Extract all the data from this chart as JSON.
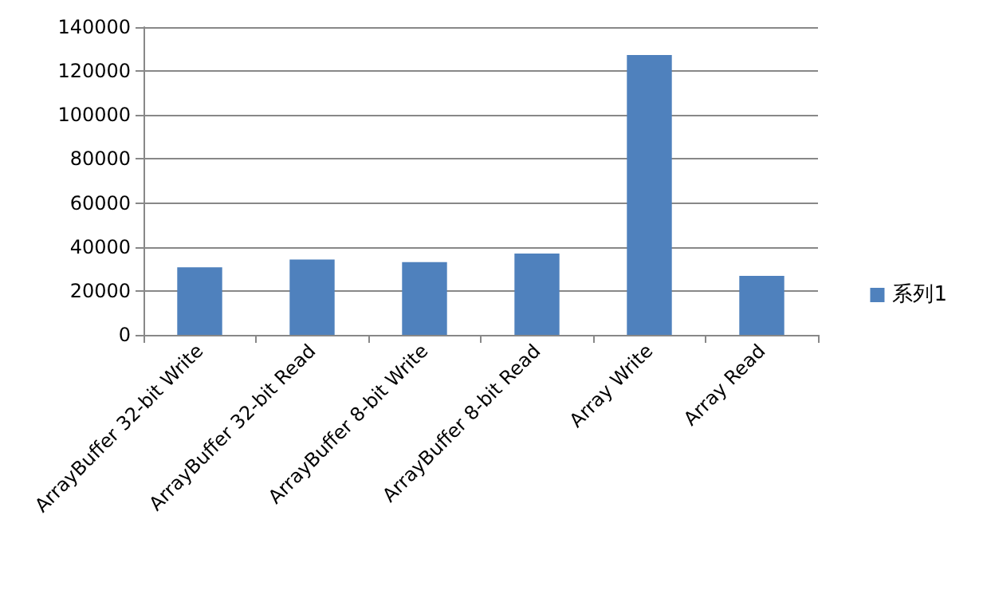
{
  "chart_data": {
    "type": "bar",
    "categories": [
      "ArrayBuffer 32-bit Write",
      "ArrayBuffer 32-bit Read",
      "ArrayBuffer 8-bit Write",
      "ArrayBuffer 8-bit Read",
      "Array Write",
      "Array Read"
    ],
    "series": [
      {
        "name": "系列1",
        "color": "#4f81bd",
        "values": [
          30700,
          34300,
          33100,
          37000,
          127300,
          26800
        ]
      }
    ],
    "ylim": [
      0,
      140000
    ],
    "yticks": [
      0,
      20000,
      40000,
      60000,
      80000,
      100000,
      120000,
      140000
    ],
    "grid": "y",
    "legend": "right"
  }
}
